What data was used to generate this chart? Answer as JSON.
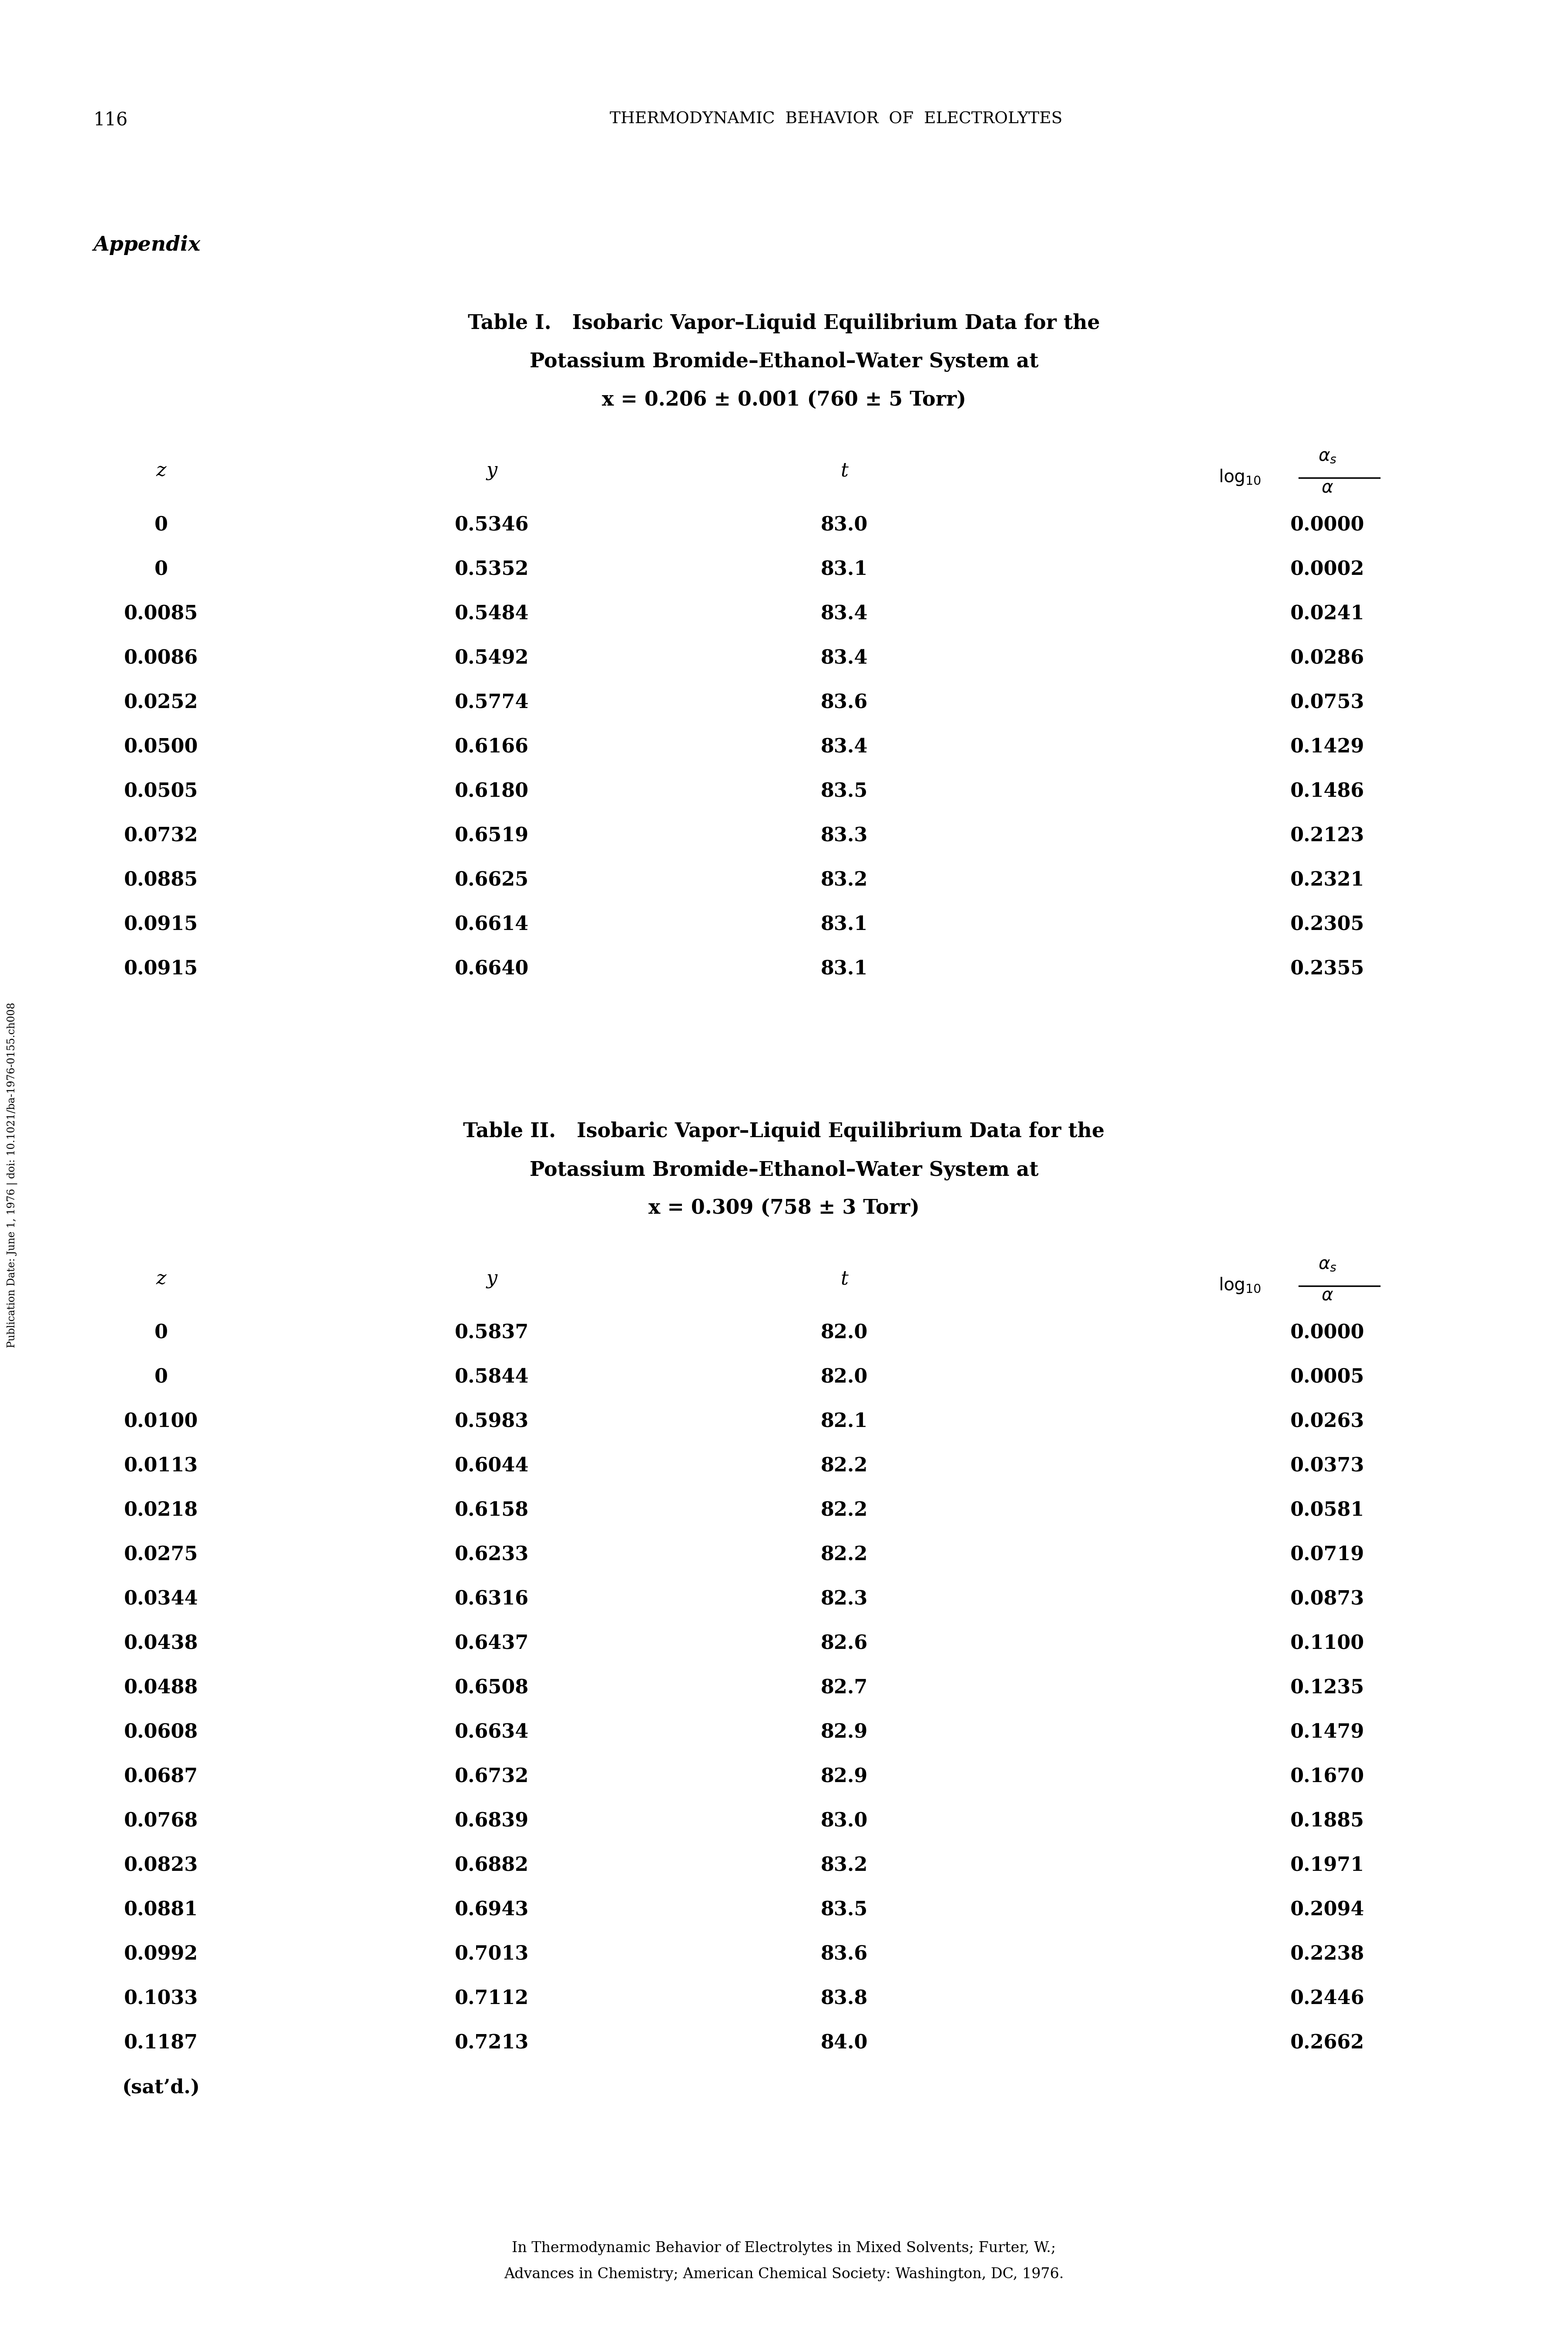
{
  "page_number": "116",
  "header_title": "THERMODYNAMIC  BEHAVIOR  OF  ELECTROLYTES",
  "appendix_label": "Appendix",
  "table1": {
    "title_line1": "Table I.   Isobaric Vapor–Liquid Equilibrium Data for the",
    "title_line2": "Potassium Bromide–Ethanol–Water System at",
    "title_line3": "x = 0.206 ± 0.001 (760 ± 5 Torr)",
    "data": [
      [
        "0",
        "0.5346",
        "83.0",
        "0.0000"
      ],
      [
        "0",
        "0.5352",
        "83.1",
        "0.0002"
      ],
      [
        "0.0085",
        "0.5484",
        "83.4",
        "0.0241"
      ],
      [
        "0.0086",
        "0.5492",
        "83.4",
        "0.0286"
      ],
      [
        "0.0252",
        "0.5774",
        "83.6",
        "0.0753"
      ],
      [
        "0.0500",
        "0.6166",
        "83.4",
        "0.1429"
      ],
      [
        "0.0505",
        "0.6180",
        "83.5",
        "0.1486"
      ],
      [
        "0.0732",
        "0.6519",
        "83.3",
        "0.2123"
      ],
      [
        "0.0885",
        "0.6625",
        "83.2",
        "0.2321"
      ],
      [
        "0.0915",
        "0.6614",
        "83.1",
        "0.2305"
      ],
      [
        "0.0915",
        "0.6640",
        "83.1",
        "0.2355"
      ]
    ]
  },
  "table2": {
    "title_line1": "Table II.   Isobaric Vapor–Liquid Equilibrium Data for the",
    "title_line2": "Potassium Bromide–Ethanol–Water System at",
    "title_line3": "x = 0.309 (758 ± 3 Torr)",
    "data": [
      [
        "0",
        "0.5837",
        "82.0",
        "0.0000"
      ],
      [
        "0",
        "0.5844",
        "82.0",
        "0.0005"
      ],
      [
        "0.0100",
        "0.5983",
        "82.1",
        "0.0263"
      ],
      [
        "0.0113",
        "0.6044",
        "82.2",
        "0.0373"
      ],
      [
        "0.0218",
        "0.6158",
        "82.2",
        "0.0581"
      ],
      [
        "0.0275",
        "0.6233",
        "82.2",
        "0.0719"
      ],
      [
        "0.0344",
        "0.6316",
        "82.3",
        "0.0873"
      ],
      [
        "0.0438",
        "0.6437",
        "82.6",
        "0.1100"
      ],
      [
        "0.0488",
        "0.6508",
        "82.7",
        "0.1235"
      ],
      [
        "0.0608",
        "0.6634",
        "82.9",
        "0.1479"
      ],
      [
        "0.0687",
        "0.6732",
        "82.9",
        "0.1670"
      ],
      [
        "0.0768",
        "0.6839",
        "83.0",
        "0.1885"
      ],
      [
        "0.0823",
        "0.6882",
        "83.2",
        "0.1971"
      ],
      [
        "0.0881",
        "0.6943",
        "83.5",
        "0.2094"
      ],
      [
        "0.0992",
        "0.7013",
        "83.6",
        "0.2238"
      ],
      [
        "0.1033",
        "0.7112",
        "83.8",
        "0.2446"
      ],
      [
        "0.1187",
        "0.7213",
        "84.0",
        "0.2662"
      ],
      [
        "(sat’d.)",
        "",
        "",
        ""
      ]
    ]
  },
  "footer_line1": "In Thermodynamic Behavior of Electrolytes in Mixed Solvents; Furter, W.;",
  "footer_line2": "Advances in Chemistry; American Chemical Society: Washington, DC, 1976.",
  "side_text": "Publication Date: June 1, 1976 | doi: 10.1021/ba-1976-0155.ch008"
}
